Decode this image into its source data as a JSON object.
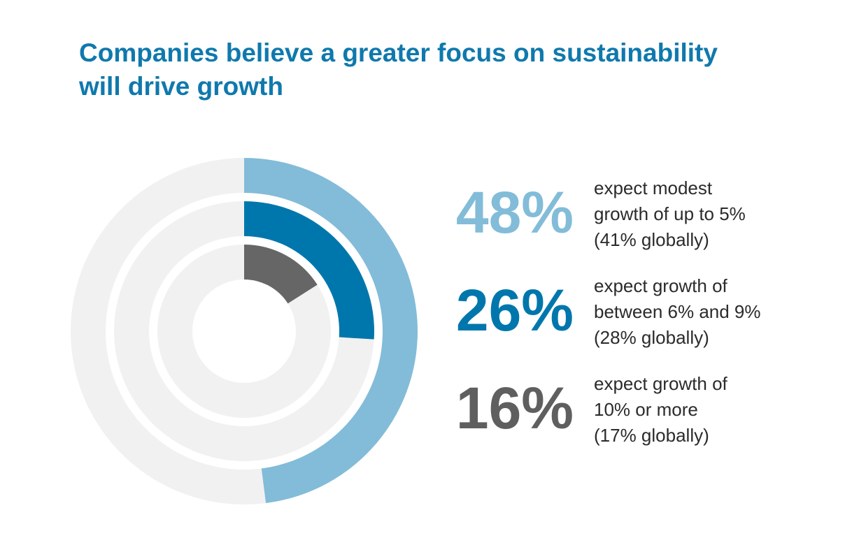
{
  "title": {
    "line1": "Companies believe a greater focus on sustainability",
    "line2": "will drive growth"
  },
  "colors": {
    "title": "#0f79ad",
    "track": "#f1f1f2",
    "series_outer": "#82bcd8",
    "series_middle": "#0077ac",
    "series_inner": "#666666",
    "text": "#2b2b2b"
  },
  "stats": [
    {
      "value": "48%",
      "color": "#82bcd8",
      "lines": [
        "expect modest",
        "growth of up to 5%",
        "(41% globally)"
      ]
    },
    {
      "value": "26%",
      "color": "#0077ac",
      "lines": [
        "expect growth of",
        "between 6% and 9%",
        "(28% globally)"
      ]
    },
    {
      "value": "16%",
      "color": "#5f5f5f",
      "lines": [
        "expect growth of",
        "10% or more",
        "(17% globally)"
      ]
    }
  ],
  "chart_data": {
    "type": "radial-bar",
    "title": "Companies believe a greater focus on sustainability will drive growth",
    "unit": "%",
    "max": 100,
    "series": [
      {
        "ring": "outer",
        "value": 48,
        "color": "#82bcd8",
        "global": 41
      },
      {
        "ring": "middle",
        "value": 26,
        "color": "#0077ac",
        "global": 28
      },
      {
        "ring": "inner",
        "value": 16,
        "color": "#666666",
        "global": 17
      }
    ]
  }
}
